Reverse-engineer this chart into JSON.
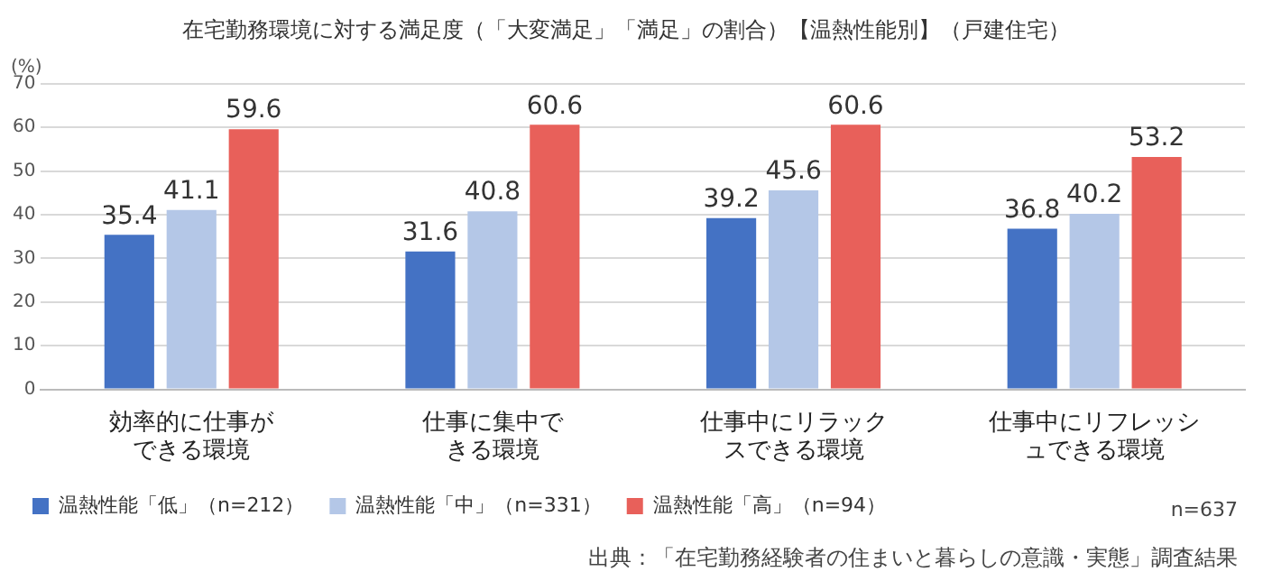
{
  "chart_data": {
    "type": "bar",
    "title": "在宅勤務環境に対する満足度（「大変満足」「満足」の割合）【温熱性能別】（戸建住宅）",
    "ylabel": "(%)",
    "categories": [
      "効率的に仕事ができる環境",
      "仕事に集中できる環境",
      "仕事中にリラックスできる環境",
      "仕事中にリフレッシュできる環境"
    ],
    "series": [
      {
        "name": "温熱性能「低」（n=212）",
        "color": "#4472c4",
        "values": [
          35.4,
          31.6,
          39.2,
          36.8
        ]
      },
      {
        "name": "温熱性能「中」（n=331）",
        "color": "#b4c7e7",
        "values": [
          41.1,
          40.8,
          45.6,
          40.2
        ]
      },
      {
        "name": "温熱性能「高」（n=94）",
        "color": "#e8605a",
        "values": [
          59.6,
          60.6,
          60.6,
          53.2
        ]
      }
    ],
    "ylim": [
      0,
      70
    ],
    "yticks": [
      0,
      10,
      20,
      30,
      40,
      50,
      60,
      70
    ],
    "grid": "y",
    "legend": "bottom left",
    "data_labels": true,
    "annotations": [
      "n=637",
      "出典：「在宅勤務経験者の住まいと暮らしの意識・実態」調査結果"
    ]
  }
}
